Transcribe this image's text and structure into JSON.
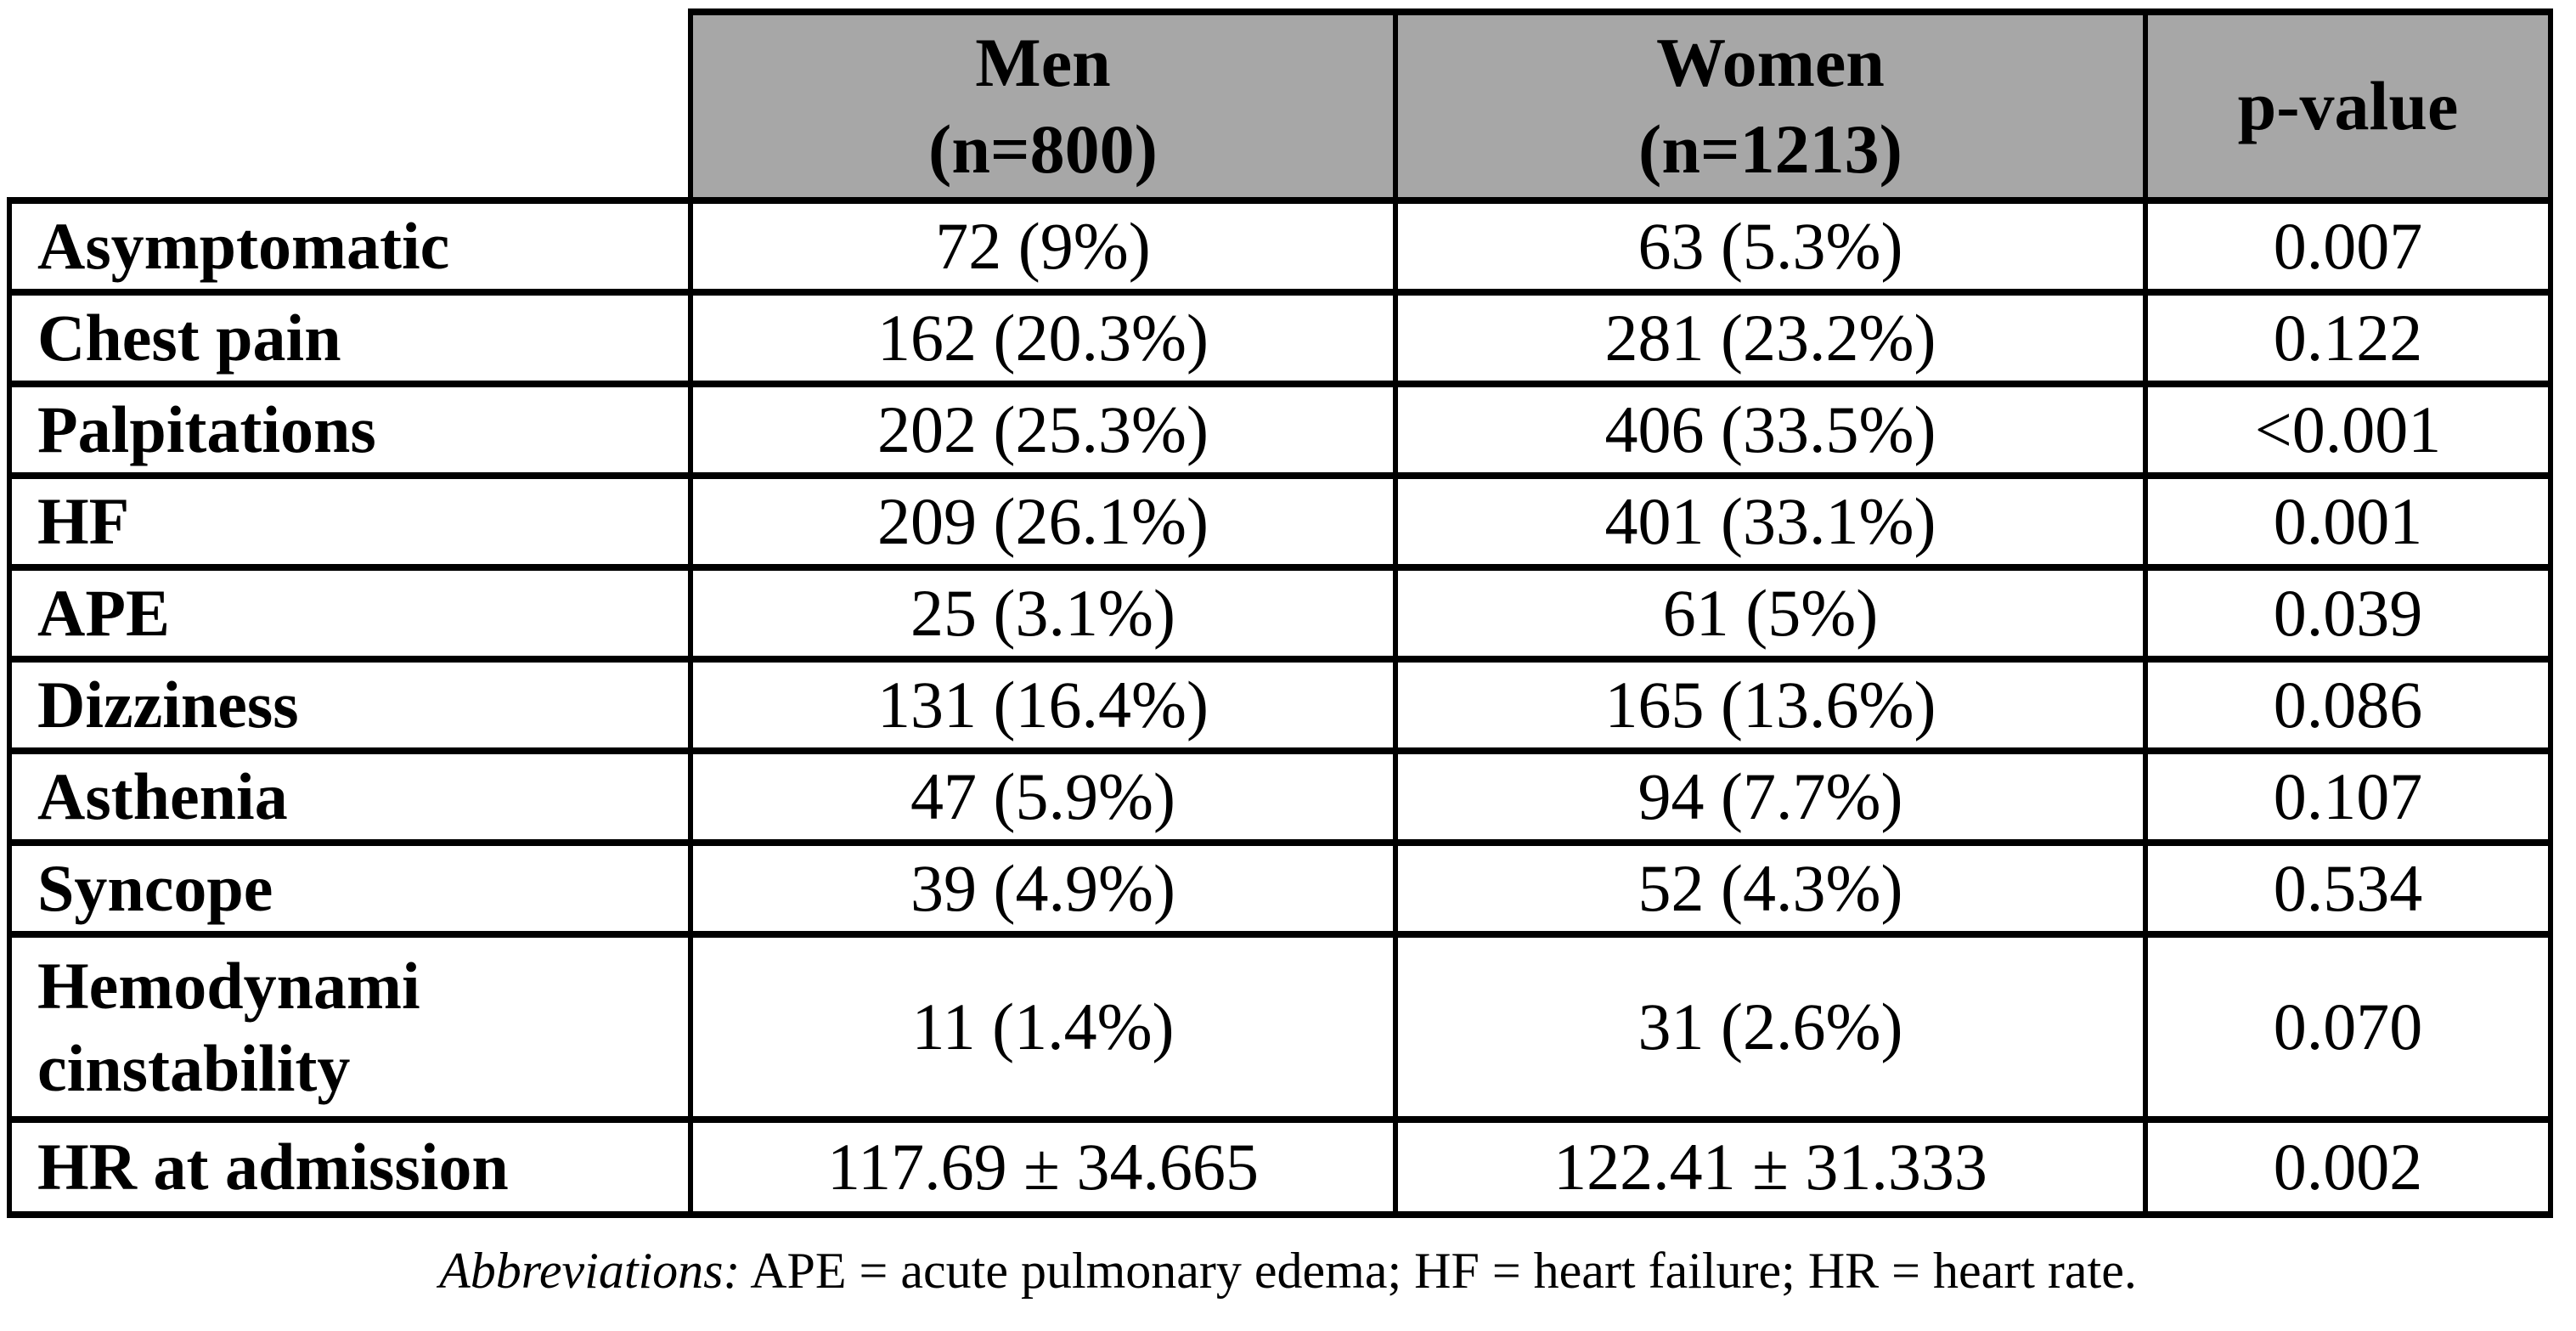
{
  "table": {
    "columns": {
      "men": {
        "title": "Men",
        "sub": "(n=800)"
      },
      "women": {
        "title": "Women",
        "sub": "(n=1213)"
      },
      "pvalue": {
        "title": "p-value"
      }
    },
    "rows": [
      {
        "label": "Asymptomatic",
        "men": "72 (9%)",
        "women": "63 (5.3%)",
        "p": "0.007"
      },
      {
        "label": "Chest pain",
        "men": "162 (20.3%)",
        "women": "281 (23.2%)",
        "p": "0.122"
      },
      {
        "label": "Palpitations",
        "men": "202 (25.3%)",
        "women": "406 (33.5%)",
        "p": "<0.001"
      },
      {
        "label": "HF",
        "men": "209 (26.1%)",
        "women": "401 (33.1%)",
        "p": "0.001"
      },
      {
        "label": "APE",
        "men": "25 (3.1%)",
        "women": "61 (5%)",
        "p": "0.039"
      },
      {
        "label": "Dizziness",
        "men": "131 (16.4%)",
        "women": "165 (13.6%)",
        "p": "0.086"
      },
      {
        "label": "Asthenia",
        "men": "47 (5.9%)",
        "women": "94 (7.7%)",
        "p": "0.107"
      },
      {
        "label": "Syncope",
        "men": "39 (4.9%)",
        "women": "52 (4.3%)",
        "p": "0.534"
      },
      {
        "label": "Hemodynami",
        "label2": "cinstability",
        "men": "11 (1.4%)",
        "women": "31 (2.6%)",
        "p": "0.070"
      },
      {
        "label": "HR at admission",
        "men": "117.69 ± 34.665",
        "women": "122.41 ± 31.333",
        "p": "0.002"
      }
    ]
  },
  "footnote": {
    "lead": "Abbreviations:",
    "text": " APE = acute pulmonary edema; HF = heart failure; HR = heart rate."
  },
  "colors": {
    "header_bg": "#a7a7a7",
    "border": "#000000"
  }
}
